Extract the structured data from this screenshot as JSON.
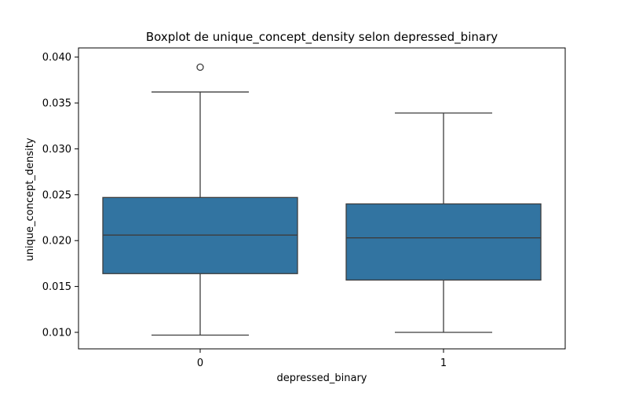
{
  "chart_data": {
    "type": "boxplot",
    "title": "Boxplot de unique_concept_density selon depressed_binary",
    "xlabel": "depressed_binary",
    "ylabel": "unique_concept_density",
    "categories": [
      "0",
      "1"
    ],
    "boxes": [
      {
        "category": "0",
        "whisker_low": 0.0097,
        "q1": 0.0164,
        "median": 0.0206,
        "q3": 0.0247,
        "whisker_high": 0.0362,
        "outliers": [
          0.0389
        ]
      },
      {
        "category": "1",
        "whisker_low": 0.01,
        "q1": 0.0157,
        "median": 0.0203,
        "q3": 0.024,
        "whisker_high": 0.0339,
        "outliers": []
      }
    ],
    "ylim": [
      0.0082,
      0.041
    ],
    "yticks": [
      0.01,
      0.015,
      0.02,
      0.025,
      0.03,
      0.035,
      0.04
    ],
    "ytick_labels": [
      "0.010",
      "0.015",
      "0.020",
      "0.025",
      "0.030",
      "0.035",
      "0.040"
    ],
    "colors": {
      "box_fill": "#3274a1",
      "line": "#3d3d3d",
      "axis": "#000000"
    },
    "grid": false
  }
}
